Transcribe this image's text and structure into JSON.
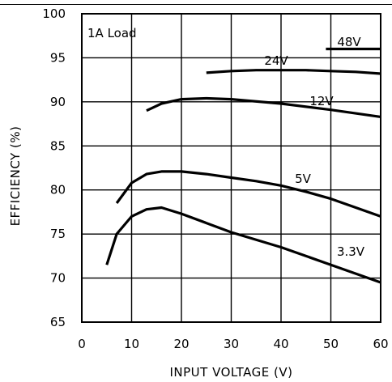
{
  "chart_data": {
    "type": "line",
    "title": "",
    "xlabel": "INPUT VOLTAGE (V)",
    "ylabel": "EFFICIENCY (%)",
    "xlim": [
      0,
      60
    ],
    "ylim": [
      65,
      100
    ],
    "xticks": [
      0,
      10,
      20,
      30,
      40,
      50,
      60
    ],
    "yticks": [
      65,
      70,
      75,
      80,
      85,
      90,
      95,
      100
    ],
    "grid": true,
    "annotation": "1A Load",
    "series": [
      {
        "name": "3.3V",
        "x": [
          5,
          7,
          10,
          13,
          16,
          20,
          30,
          40,
          50,
          60
        ],
        "y": [
          71.5,
          75.0,
          77.0,
          77.8,
          78.0,
          77.3,
          75.2,
          73.5,
          71.5,
          69.5
        ]
      },
      {
        "name": "5V",
        "x": [
          7,
          10,
          13,
          16,
          20,
          25,
          30,
          35,
          40,
          45,
          50,
          55,
          60
        ],
        "y": [
          78.5,
          80.8,
          81.8,
          82.1,
          82.1,
          81.8,
          81.4,
          81.0,
          80.5,
          79.8,
          79.0,
          78.0,
          77.0
        ]
      },
      {
        "name": "12V",
        "x": [
          13,
          16,
          20,
          25,
          30,
          40,
          50,
          60
        ],
        "y": [
          89.0,
          89.8,
          90.3,
          90.4,
          90.3,
          89.8,
          89.1,
          88.3
        ]
      },
      {
        "name": "24V",
        "x": [
          25,
          30,
          35,
          40,
          45,
          50,
          55,
          60
        ],
        "y": [
          93.3,
          93.5,
          93.6,
          93.6,
          93.6,
          93.5,
          93.4,
          93.2
        ]
      },
      {
        "name": "48V",
        "x": [
          49,
          60
        ],
        "y": [
          96.0,
          96.0
        ]
      }
    ]
  }
}
